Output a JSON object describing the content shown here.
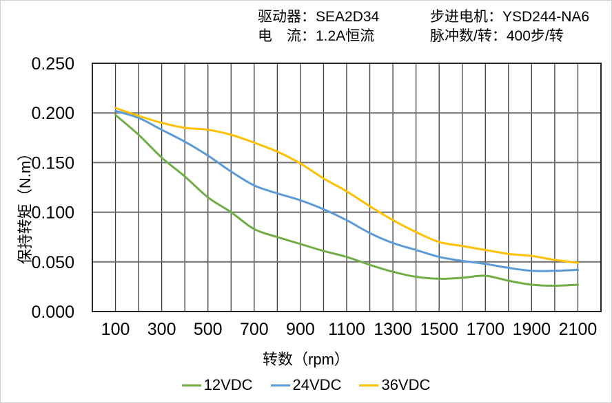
{
  "header": {
    "driver": "驱动器：SEA2D34",
    "current": "电　流：1.2A恒流",
    "motor": "步进电机：YSD244-NA6",
    "pulses": "脉冲数/转：400步/转"
  },
  "axes": {
    "x_title": "转数（rpm）",
    "y_title": "保持转矩（N.m）"
  },
  "chart_data": {
    "type": "line",
    "title": "",
    "xlabel": "转数（rpm）",
    "ylabel": "保持转矩（N.m）",
    "xlim": [
      0,
      2200
    ],
    "ylim": [
      0,
      0.25
    ],
    "grid": {
      "x_step": 100,
      "y_step": 0.05,
      "visible": true
    },
    "legend_position": "bottom",
    "x": [
      100,
      200,
      300,
      400,
      500,
      600,
      700,
      800,
      900,
      1000,
      1100,
      1200,
      1300,
      1400,
      1500,
      1600,
      1700,
      1800,
      1900,
      2000,
      2100
    ],
    "xticks": [
      100,
      300,
      500,
      700,
      900,
      1100,
      1300,
      1500,
      1700,
      1900,
      2100
    ],
    "yticks": [
      "0.000",
      "0.050",
      "0.100",
      "0.150",
      "0.200",
      "0.250"
    ],
    "series": [
      {
        "name": "12VDC",
        "color": "#70AD47",
        "values": [
          0.198,
          0.178,
          0.155,
          0.136,
          0.115,
          0.1,
          0.083,
          0.075,
          0.068,
          0.061,
          0.055,
          0.047,
          0.04,
          0.035,
          0.033,
          0.034,
          0.036,
          0.031,
          0.027,
          0.026,
          0.027
        ]
      },
      {
        "name": "24VDC",
        "color": "#5B9BD5",
        "values": [
          0.202,
          0.195,
          0.183,
          0.171,
          0.157,
          0.141,
          0.127,
          0.119,
          0.112,
          0.103,
          0.092,
          0.079,
          0.069,
          0.062,
          0.055,
          0.051,
          0.048,
          0.044,
          0.041,
          0.041,
          0.042
        ]
      },
      {
        "name": "36VDC",
        "color": "#FFC000",
        "values": [
          0.205,
          0.197,
          0.19,
          0.185,
          0.183,
          0.178,
          0.17,
          0.161,
          0.149,
          0.134,
          0.121,
          0.106,
          0.092,
          0.08,
          0.07,
          0.066,
          0.062,
          0.058,
          0.056,
          0.052,
          0.049
        ]
      }
    ]
  },
  "style": {
    "vgrid_color": "#3a3a3a",
    "hgrid_color": "#6e6e6e",
    "border_color": "#262626",
    "tick_color": "#000000",
    "background": "#ffffff"
  }
}
